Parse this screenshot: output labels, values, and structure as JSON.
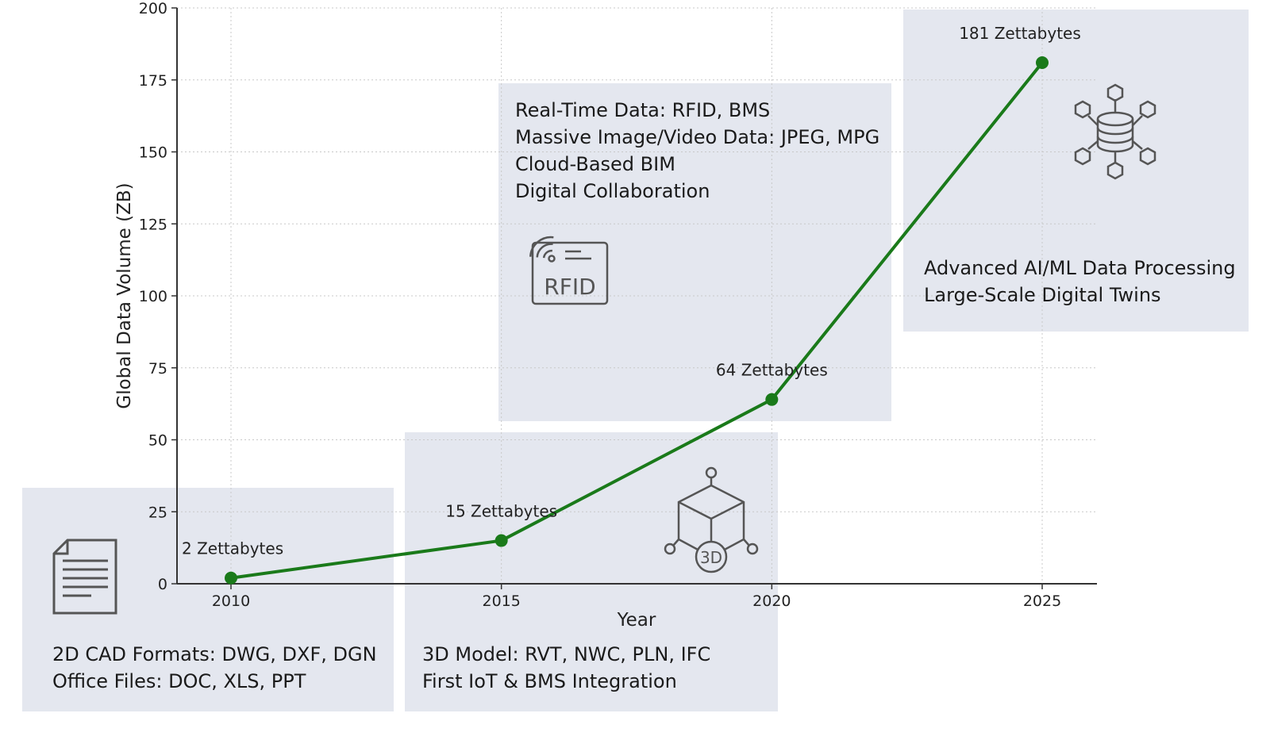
{
  "chart_data": {
    "type": "line",
    "x": [
      2010,
      2015,
      2020,
      2025
    ],
    "series": [
      {
        "values": [
          2,
          15,
          64,
          181
        ]
      }
    ],
    "point_labels": [
      "2 Zettabytes",
      "15 Zettabytes",
      "64 Zettabytes",
      "181 Zettabytes"
    ],
    "xlabel": "Year",
    "ylabel": "Global Data Volume (ZB)",
    "x_ticks": [
      "2010",
      "2015",
      "2020",
      "2025"
    ],
    "y_ticks": [
      "0",
      "25",
      "50",
      "75",
      "100",
      "125",
      "150",
      "175",
      "200"
    ],
    "xlim": [
      2009,
      2026
    ],
    "ylim": [
      0,
      200
    ],
    "grid": true,
    "line_color": "#1a7a1a",
    "panel_color": "#e4e7ef"
  },
  "panels": [
    {
      "icon": "document-icon",
      "lines": [
        "2D CAD Formats: DWG, DXF, DGN",
        "Office Files: DOC, XLS, PPT"
      ]
    },
    {
      "icon": "3d-model-icon",
      "lines": [
        "3D Model: RVT, NWC, PLN, IFC",
        "First IoT & BMS Integration"
      ]
    },
    {
      "icon": "rfid-icon",
      "icon_text": "RFID",
      "lines": [
        "Real-Time Data: RFID, BMS",
        "Massive Image/Video Data: JPEG, MPG",
        "Cloud-Based BIM",
        "Digital Collaboration"
      ]
    },
    {
      "icon": "database-network-icon",
      "lines": [
        "Advanced AI/ML Data Processing",
        "Large-Scale Digital Twins"
      ]
    }
  ]
}
